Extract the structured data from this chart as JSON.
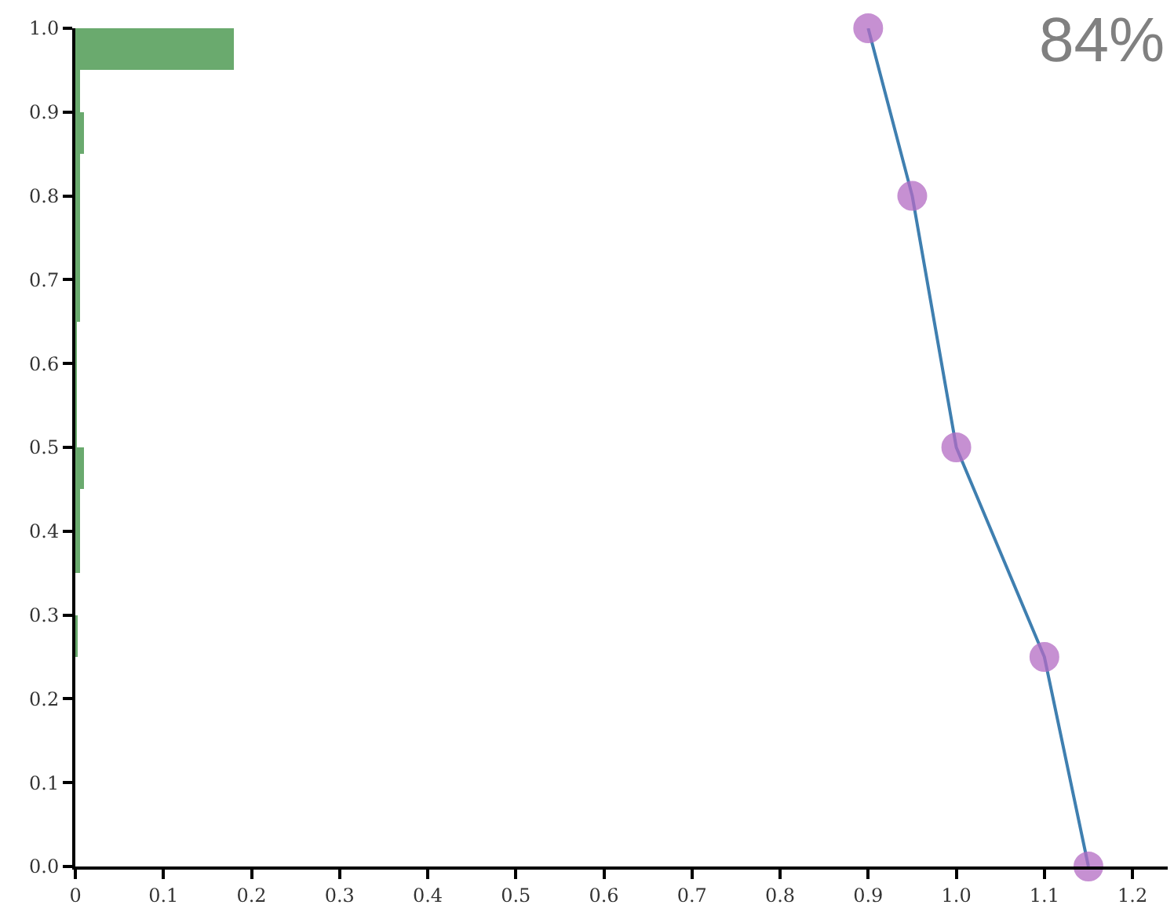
{
  "chart_data": {
    "type": "bar",
    "orientation": "horizontal",
    "annotations": [
      "84%"
    ],
    "xlim": [
      0,
      1.24
    ],
    "xticks": [
      0,
      {
        "value": 0.1,
        "label": "0.1"
      },
      {
        "value": 0.2,
        "label": "0.2"
      },
      {
        "value": 0.3,
        "label": "0.3"
      },
      {
        "value": 0.4,
        "label": "0.4"
      },
      {
        "value": 0.5,
        "label": "0.5"
      },
      {
        "value": 0.6,
        "label": "0.6"
      },
      {
        "value": 0.7,
        "label": "0.7"
      },
      {
        "value": 0.8,
        "label": "0.8"
      },
      {
        "value": 0.9,
        "label": "0.9"
      },
      {
        "value": 1,
        "label": "1.0"
      },
      {
        "value": 1.1,
        "label": "1.1"
      },
      {
        "value": 1.2,
        "label": "1.2"
      }
    ],
    "ylim": [
      0,
      1
    ],
    "yticks": [
      {
        "value": 0,
        "label": "0.0"
      },
      {
        "value": 0.1,
        "label": "0.1"
      },
      {
        "value": 0.2,
        "label": "0.2"
      },
      {
        "value": 0.3,
        "label": "0.3"
      },
      {
        "value": 0.4,
        "label": "0.4"
      },
      {
        "value": 0.5,
        "label": "0.5"
      },
      {
        "value": 0.6,
        "label": "0.6"
      },
      {
        "value": 0.7,
        "label": "0.7"
      },
      {
        "value": 0.8,
        "label": "0.8"
      },
      {
        "value": 0.9,
        "label": "0.9"
      },
      {
        "value": 1,
        "label": "1.0"
      }
    ],
    "grid": false,
    "marker": "circle",
    "series": [
      {
        "color": "#6aaa6e",
        "x": [
          0.275,
          0.375,
          0.425,
          0.475,
          0.525,
          0.575,
          0.625,
          0.675,
          0.725,
          0.775,
          0.825,
          0.875,
          0.925,
          0.975
        ],
        "values": [
          0.003,
          0.005,
          0.005,
          0.01,
          0.002,
          0.002,
          0.002,
          0.005,
          0.005,
          0.005,
          0.005,
          0.01,
          0.005,
          0.18
        ]
      },
      {
        "type": "line",
        "color": "#3f7fb0",
        "colors": [
          "#b36bc4",
          "#b36bc4",
          "#b36bc4",
          "#b36bc4",
          "#b36bc4"
        ],
        "x": [
          1,
          0.8,
          0.5,
          0.25,
          0
        ],
        "values": [
          0.9,
          0.95,
          1.0,
          1.1,
          1.15
        ]
      }
    ]
  }
}
